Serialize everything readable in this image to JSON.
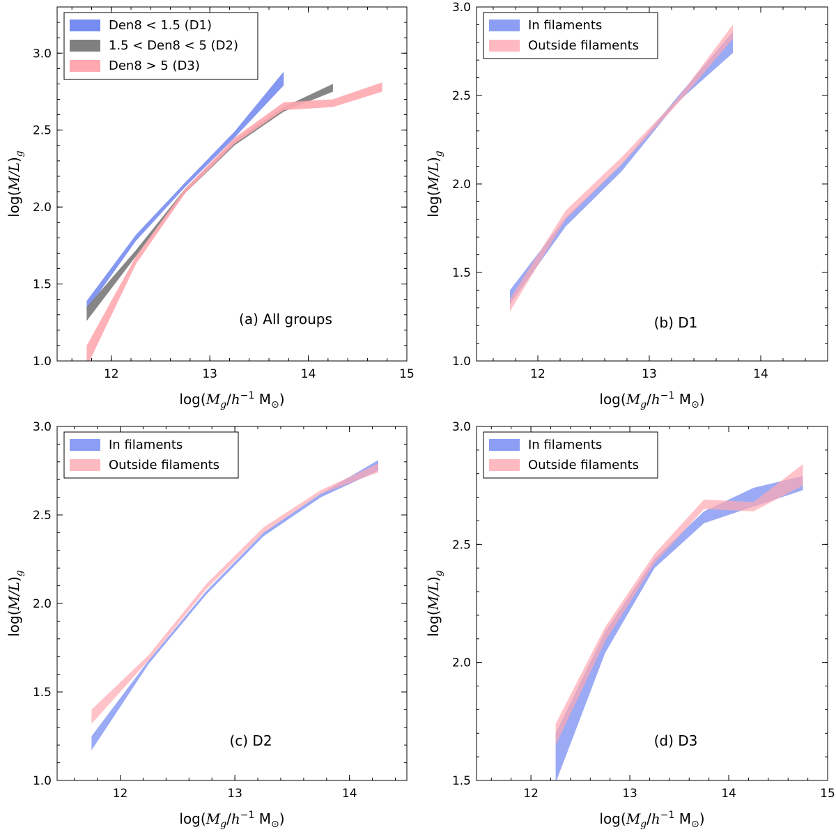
{
  "chart_data": [
    {
      "type": "area",
      "panel": "a",
      "annotation": "(a) All groups",
      "xlabel": "log(M_g/h^-1 M_sun)",
      "ylabel": "log(M/L)_g",
      "xlabel_parts": {
        "prefix": "log(",
        "M": "M",
        "g": "g",
        "h": "h",
        "exp": "−1",
        "msun": " M",
        "sun": "⊙",
        "suffix": ")"
      },
      "ylabel_parts": {
        "prefix": "log(",
        "ML": "M/L",
        "suffix": ")",
        "g": "g"
      },
      "xlim": [
        11.45,
        15.0
      ],
      "ylim": [
        1.0,
        3.3
      ],
      "xticks": [
        "12",
        "13",
        "14",
        "15"
      ],
      "xtick_values": [
        12,
        13,
        14,
        15
      ],
      "yticks": [
        "1.0",
        "1.5",
        "2.0",
        "2.5",
        "3.0"
      ],
      "ytick_values": [
        1.0,
        1.5,
        2.0,
        2.5,
        3.0
      ],
      "legend_location": "top-left",
      "series": [
        {
          "name": "Den8 < 1.5 (D1)",
          "color": "#6f86f0",
          "alpha": 0.85,
          "x": [
            11.75,
            12.25,
            12.75,
            13.25,
            13.75
          ],
          "low": [
            1.33,
            1.78,
            2.13,
            2.45,
            2.79
          ],
          "high": [
            1.39,
            1.82,
            2.16,
            2.49,
            2.88
          ]
        },
        {
          "name": "1.5 < Den8 < 5 (D2)",
          "color": "#808080",
          "alpha": 0.95,
          "x": [
            11.75,
            12.25,
            12.75,
            13.25,
            13.75,
            14.25
          ],
          "low": [
            1.26,
            1.68,
            2.09,
            2.4,
            2.62,
            2.75
          ],
          "high": [
            1.35,
            1.72,
            2.12,
            2.43,
            2.65,
            2.8
          ]
        },
        {
          "name": "Den8 > 5 (D3)",
          "color": "#ffa8b0",
          "alpha": 0.9,
          "x": [
            11.75,
            12.25,
            12.75,
            13.25,
            13.75,
            14.25,
            14.75
          ],
          "low": [
            0.96,
            1.63,
            2.09,
            2.41,
            2.63,
            2.65,
            2.75
          ],
          "high": [
            1.1,
            1.68,
            2.12,
            2.45,
            2.68,
            2.7,
            2.81
          ]
        }
      ]
    },
    {
      "type": "area",
      "panel": "b",
      "annotation": "(b) D1",
      "xlabel": "log(M_g/h^-1 M_sun)",
      "ylabel": "log(M/L)_g",
      "xlim": [
        11.45,
        14.6
      ],
      "ylim": [
        1.0,
        3.0
      ],
      "xticks": [
        "12",
        "13",
        "14"
      ],
      "xtick_values": [
        12,
        13,
        14
      ],
      "yticks": [
        "1.0",
        "1.5",
        "2.0",
        "2.5",
        "3.0"
      ],
      "ytick_values": [
        1.0,
        1.5,
        2.0,
        2.5,
        3.0
      ],
      "legend_location": "top-left",
      "series": [
        {
          "name": "In filaments",
          "color": "#6f86f0",
          "alpha": 0.7,
          "x": [
            11.75,
            12.25,
            12.75,
            13.25,
            13.75
          ],
          "low": [
            1.32,
            1.76,
            2.07,
            2.46,
            2.74
          ],
          "high": [
            1.4,
            1.81,
            2.11,
            2.49,
            2.86
          ]
        },
        {
          "name": "Outside filaments",
          "color": "#ffa8b0",
          "alpha": 0.7,
          "x": [
            11.75,
            12.25,
            12.75,
            13.25,
            13.75
          ],
          "low": [
            1.28,
            1.8,
            2.11,
            2.45,
            2.82
          ],
          "high": [
            1.35,
            1.85,
            2.15,
            2.48,
            2.9
          ]
        }
      ]
    },
    {
      "type": "area",
      "panel": "c",
      "annotation": "(c) D2",
      "xlabel": "log(M_g/h^-1 M_sun)",
      "ylabel": "log(M/L)_g",
      "xlim": [
        11.45,
        14.5
      ],
      "ylim": [
        1.0,
        3.0
      ],
      "xticks": [
        "12",
        "13",
        "14"
      ],
      "xtick_values": [
        12,
        13,
        14
      ],
      "yticks": [
        "1.0",
        "1.5",
        "2.0",
        "2.5",
        "3.0"
      ],
      "ytick_values": [
        1.0,
        1.5,
        2.0,
        2.5,
        3.0
      ],
      "legend_location": "top-left",
      "series": [
        {
          "name": "In filaments",
          "color": "#6f86f0",
          "alpha": 0.7,
          "x": [
            11.75,
            12.25,
            12.75,
            13.25,
            13.75,
            14.25
          ],
          "low": [
            1.17,
            1.66,
            2.05,
            2.38,
            2.6,
            2.75
          ],
          "high": [
            1.25,
            1.68,
            2.07,
            2.4,
            2.62,
            2.81
          ]
        },
        {
          "name": "Outside filaments",
          "color": "#ffa8b0",
          "alpha": 0.7,
          "x": [
            11.75,
            12.25,
            12.75,
            13.25,
            13.75,
            14.25
          ],
          "low": [
            1.32,
            1.68,
            2.08,
            2.4,
            2.62,
            2.74
          ],
          "high": [
            1.4,
            1.71,
            2.11,
            2.43,
            2.64,
            2.79
          ]
        }
      ]
    },
    {
      "type": "area",
      "panel": "d",
      "annotation": "(d) D3",
      "xlabel": "log(M_g/h^-1 M_sun)",
      "ylabel": "log(M/L)_g",
      "xlim": [
        11.45,
        15.0
      ],
      "ylim": [
        1.5,
        3.0
      ],
      "xticks": [
        "12",
        "13",
        "14",
        "15"
      ],
      "xtick_values": [
        12,
        13,
        14,
        15
      ],
      "yticks": [
        "1.5",
        "2.0",
        "2.5",
        "3.0"
      ],
      "ytick_values": [
        1.5,
        2.0,
        2.5,
        3.0
      ],
      "legend_location": "top-left",
      "series": [
        {
          "name": "In filaments",
          "color": "#6f86f0",
          "alpha": 0.7,
          "x": [
            12.25,
            12.75,
            13.25,
            13.75,
            14.25,
            14.75
          ],
          "low": [
            1.49,
            2.04,
            2.4,
            2.59,
            2.66,
            2.73
          ],
          "high": [
            1.7,
            2.13,
            2.44,
            2.64,
            2.74,
            2.79
          ]
        },
        {
          "name": "Outside filaments",
          "color": "#ffa8b0",
          "alpha": 0.7,
          "x": [
            12.25,
            12.75,
            13.25,
            13.75,
            14.25,
            14.75
          ],
          "low": [
            1.65,
            2.09,
            2.42,
            2.65,
            2.64,
            2.75
          ],
          "high": [
            1.74,
            2.15,
            2.46,
            2.69,
            2.68,
            2.84
          ]
        }
      ]
    }
  ]
}
